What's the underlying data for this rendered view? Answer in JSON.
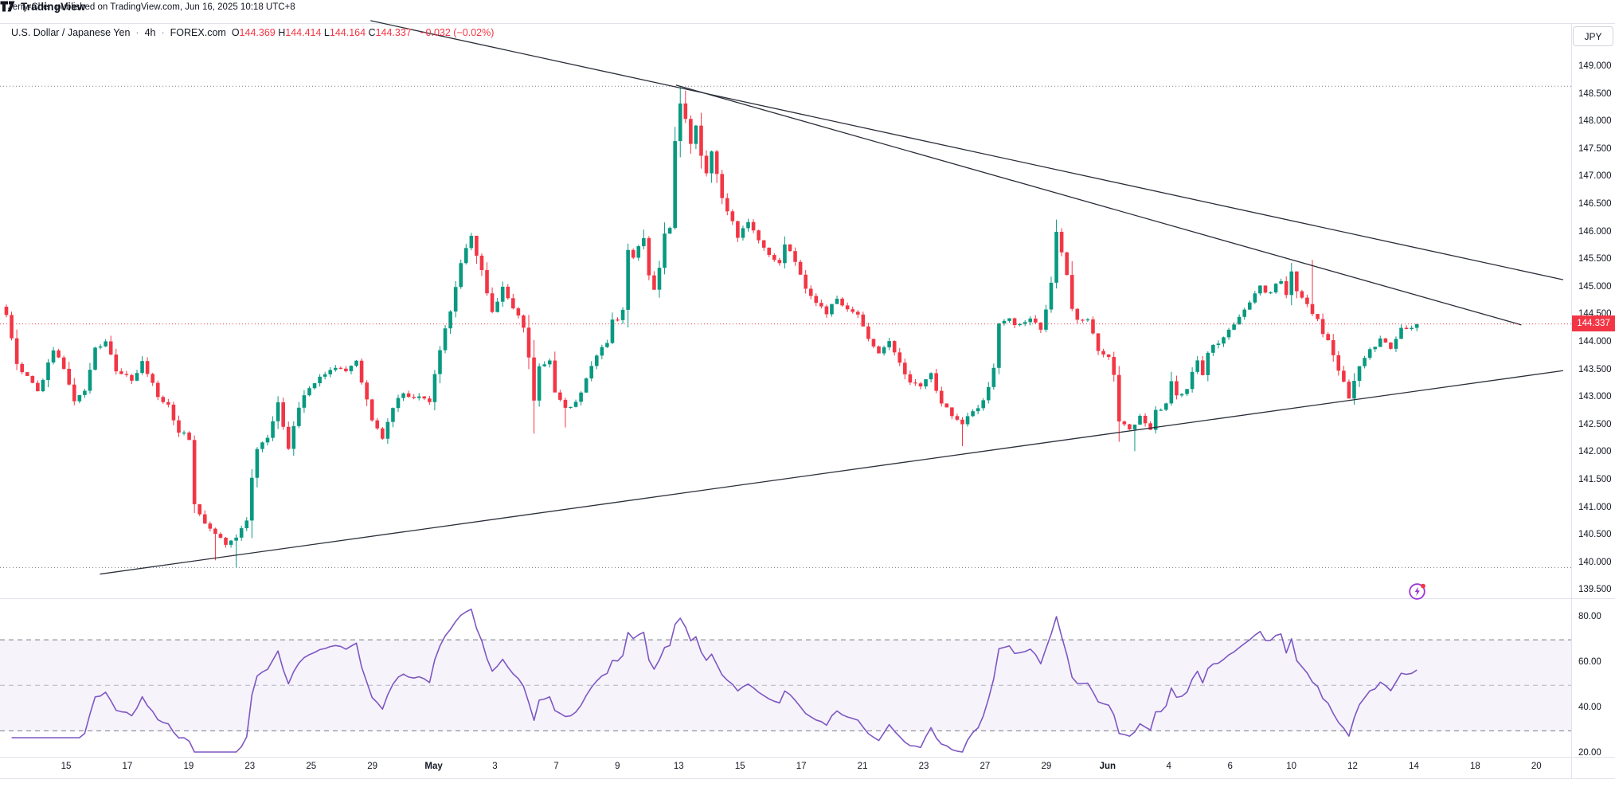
{
  "attribution": "Jerry-Chen published on TradingView.com, Jun 16, 2025 10:18 UTC+8",
  "symbol": {
    "title": "U.S. Dollar / Japanese Yen",
    "interval": "4h",
    "exchange": "FOREX.com",
    "separator": "·",
    "ohlc_items": [
      {
        "k": "O",
        "v": "144.369"
      },
      {
        "k": "H",
        "v": "144.414"
      },
      {
        "k": "L",
        "v": "144.164"
      },
      {
        "k": "C",
        "v": "144.337"
      }
    ],
    "change": "−0.032 (−0.02%)"
  },
  "price_axis": {
    "currency_button": "JPY",
    "ticks": [
      "149.000",
      "148.500",
      "148.000",
      "147.500",
      "147.000",
      "146.500",
      "146.000",
      "145.500",
      "145.000",
      "144.500",
      "144.000",
      "143.500",
      "143.000",
      "142.500",
      "142.000",
      "141.500",
      "141.000",
      "140.500",
      "140.000",
      "139.500"
    ],
    "last_price_label": "144.337"
  },
  "rsi_axis": {
    "ticks": [
      "80.00",
      "60.00",
      "40.00",
      "20.00"
    ]
  },
  "time_axis": {
    "labels": [
      {
        "text": "15"
      },
      {
        "text": "17"
      },
      {
        "text": "19"
      },
      {
        "text": "23"
      },
      {
        "text": "25"
      },
      {
        "text": "29"
      },
      {
        "text": "May",
        "month": true
      },
      {
        "text": "3"
      },
      {
        "text": "7"
      },
      {
        "text": "9"
      },
      {
        "text": "13"
      },
      {
        "text": "15"
      },
      {
        "text": "17"
      },
      {
        "text": "21"
      },
      {
        "text": "23"
      },
      {
        "text": "27"
      },
      {
        "text": "29"
      },
      {
        "text": "Jun",
        "month": true
      },
      {
        "text": "4"
      },
      {
        "text": "6"
      },
      {
        "text": "10"
      },
      {
        "text": "12"
      },
      {
        "text": "14"
      },
      {
        "text": "18"
      },
      {
        "text": "20"
      }
    ]
  },
  "footer": {
    "brand": "TradingView"
  },
  "colors": {
    "up": "#089981",
    "down": "#f23645",
    "rsi_line": "#7e57c2",
    "rsi_band_fill": "rgba(126,87,194,0.07)",
    "band_dash": "#787b86",
    "mid_dash": "#b2b5be",
    "trendline": "#2a2e39",
    "hilo_dotted": "#787b86",
    "last_price": "#f23645",
    "text": "#131722",
    "separator": "#e0e3eb",
    "flash_icon": "#9c36d6",
    "flash_dot": "#f23645"
  },
  "chart_data": {
    "type": "candlestick",
    "title": "U.S. Dollar / Japanese Yen",
    "interval": "4h",
    "source": "FOREX.com",
    "ylabel": "JPY",
    "price_range_visible": [
      139.5,
      149.0
    ],
    "visible_high": 148.65,
    "visible_low": 139.92,
    "last_close": 144.337,
    "bars": 271,
    "close_waypoints": [
      [
        0,
        144.5
      ],
      [
        1,
        144.05
      ],
      [
        2,
        143.6
      ],
      [
        4,
        143.35
      ],
      [
        6,
        143.1
      ],
      [
        9,
        143.85
      ],
      [
        11,
        143.55
      ],
      [
        13,
        142.95
      ],
      [
        15,
        143.15
      ],
      [
        17,
        143.9
      ],
      [
        19,
        144.0
      ],
      [
        21,
        143.5
      ],
      [
        24,
        143.3
      ],
      [
        26,
        143.65
      ],
      [
        29,
        143.05
      ],
      [
        31,
        142.85
      ],
      [
        33,
        142.4
      ],
      [
        35,
        142.25
      ],
      [
        36,
        141.1
      ],
      [
        38,
        140.7
      ],
      [
        40,
        140.55
      ],
      [
        42,
        140.3
      ],
      [
        44,
        140.45
      ],
      [
        46,
        140.8
      ],
      [
        47,
        141.55
      ],
      [
        48,
        142.05
      ],
      [
        50,
        142.3
      ],
      [
        52,
        142.9
      ],
      [
        54,
        142.05
      ],
      [
        56,
        142.85
      ],
      [
        58,
        143.2
      ],
      [
        60,
        143.35
      ],
      [
        63,
        143.55
      ],
      [
        65,
        143.45
      ],
      [
        67,
        143.7
      ],
      [
        68,
        143.3
      ],
      [
        70,
        142.6
      ],
      [
        72,
        142.3
      ],
      [
        74,
        142.85
      ],
      [
        76,
        143.05
      ],
      [
        79,
        143.0
      ],
      [
        81,
        142.95
      ],
      [
        83,
        143.9
      ],
      [
        85,
        144.6
      ],
      [
        87,
        145.4
      ],
      [
        89,
        145.95
      ],
      [
        90,
        145.55
      ],
      [
        91,
        145.3
      ],
      [
        92,
        144.85
      ],
      [
        93,
        144.55
      ],
      [
        95,
        145.0
      ],
      [
        97,
        144.6
      ],
      [
        99,
        144.3
      ],
      [
        100,
        143.7
      ],
      [
        101,
        142.95
      ],
      [
        102,
        143.55
      ],
      [
        104,
        143.7
      ],
      [
        105,
        143.1
      ],
      [
        107,
        142.8
      ],
      [
        109,
        142.9
      ],
      [
        111,
        143.35
      ],
      [
        113,
        143.8
      ],
      [
        115,
        143.95
      ],
      [
        116,
        144.45
      ],
      [
        117,
        144.4
      ],
      [
        118,
        144.6
      ],
      [
        119,
        145.7
      ],
      [
        120,
        145.5
      ],
      [
        121,
        145.75
      ],
      [
        122,
        145.9
      ],
      [
        123,
        145.2
      ],
      [
        124,
        144.95
      ],
      [
        125,
        145.35
      ],
      [
        126,
        145.95
      ],
      [
        127,
        146.1
      ],
      [
        128,
        147.7
      ],
      [
        129,
        148.3
      ],
      [
        130,
        148.05
      ],
      [
        131,
        147.6
      ],
      [
        132,
        147.95
      ],
      [
        133,
        147.4
      ],
      [
        134,
        147.1
      ],
      [
        135,
        147.5
      ],
      [
        137,
        146.6
      ],
      [
        139,
        146.2
      ],
      [
        140,
        145.9
      ],
      [
        142,
        146.2
      ],
      [
        144,
        145.85
      ],
      [
        146,
        145.55
      ],
      [
        148,
        145.45
      ],
      [
        149,
        145.8
      ],
      [
        151,
        145.5
      ],
      [
        153,
        144.95
      ],
      [
        155,
        144.7
      ],
      [
        157,
        144.55
      ],
      [
        159,
        144.8
      ],
      [
        161,
        144.6
      ],
      [
        163,
        144.5
      ],
      [
        165,
        144.05
      ],
      [
        167,
        143.8
      ],
      [
        169,
        144.0
      ],
      [
        171,
        143.6
      ],
      [
        173,
        143.3
      ],
      [
        175,
        143.2
      ],
      [
        177,
        143.4
      ],
      [
        179,
        142.9
      ],
      [
        181,
        142.7
      ],
      [
        183,
        142.55
      ],
      [
        185,
        142.75
      ],
      [
        187,
        142.95
      ],
      [
        189,
        143.5
      ],
      [
        190,
        144.35
      ],
      [
        192,
        144.4
      ],
      [
        194,
        144.3
      ],
      [
        196,
        144.4
      ],
      [
        198,
        144.25
      ],
      [
        199,
        144.6
      ],
      [
        200,
        145.05
      ],
      [
        201,
        146.0
      ],
      [
        202,
        145.65
      ],
      [
        203,
        145.2
      ],
      [
        204,
        144.65
      ],
      [
        205,
        144.4
      ],
      [
        207,
        144.45
      ],
      [
        208,
        144.2
      ],
      [
        209,
        143.85
      ],
      [
        211,
        143.7
      ],
      [
        212,
        143.4
      ],
      [
        213,
        142.6
      ],
      [
        215,
        142.45
      ],
      [
        217,
        142.65
      ],
      [
        219,
        142.45
      ],
      [
        220,
        142.75
      ],
      [
        222,
        142.9
      ],
      [
        223,
        143.3
      ],
      [
        224,
        143.0
      ],
      [
        226,
        143.2
      ],
      [
        228,
        143.65
      ],
      [
        229,
        143.45
      ],
      [
        230,
        143.85
      ],
      [
        232,
        144.0
      ],
      [
        234,
        144.25
      ],
      [
        236,
        144.45
      ],
      [
        238,
        144.7
      ],
      [
        240,
        145.0
      ],
      [
        242,
        144.9
      ],
      [
        244,
        145.15
      ],
      [
        245,
        144.85
      ],
      [
        246,
        145.25
      ],
      [
        247,
        144.95
      ],
      [
        249,
        144.7
      ],
      [
        251,
        144.4
      ],
      [
        253,
        144.0
      ],
      [
        255,
        143.5
      ],
      [
        257,
        143.0
      ],
      [
        259,
        143.55
      ],
      [
        261,
        143.85
      ],
      [
        263,
        144.05
      ],
      [
        265,
        143.9
      ],
      [
        267,
        144.25
      ],
      [
        269,
        144.3
      ],
      [
        270,
        144.337
      ]
    ],
    "wick_spikes": {
      "40": {
        "low": 140.05
      },
      "44": {
        "low": 139.92
      },
      "90": {
        "high": 145.92
      },
      "101": {
        "low": 142.35
      },
      "107": {
        "low": 142.46
      },
      "122": {
        "high": 146.05
      },
      "129": {
        "high": 148.65
      },
      "130": {
        "high": 148.57
      },
      "183": {
        "low": 142.12
      },
      "201": {
        "high": 146.23
      },
      "213": {
        "low": 142.2
      },
      "216": {
        "low": 142.03
      },
      "250": {
        "high": 145.5
      }
    },
    "trendlines": [
      {
        "name": "upper-descending",
        "b1": 69.7,
        "p1": 149.84,
        "b2": 298,
        "p2": 145.14
      },
      {
        "name": "inner-descending",
        "b1": 128.2,
        "p1": 148.67,
        "b2": 290,
        "p2": 144.32
      },
      {
        "name": "ascending-support",
        "b1": 17.9,
        "p1": 139.8,
        "b2": 298,
        "p2": 143.49
      }
    ],
    "dotted_levels": [
      148.65,
      139.92
    ],
    "last_price_line": 144.337,
    "indicator": {
      "type": "RSI",
      "length": 14,
      "scale_ticks": [
        80,
        60,
        40,
        20
      ],
      "upper_band": 70,
      "middle": 50,
      "lower_band": 30
    }
  }
}
